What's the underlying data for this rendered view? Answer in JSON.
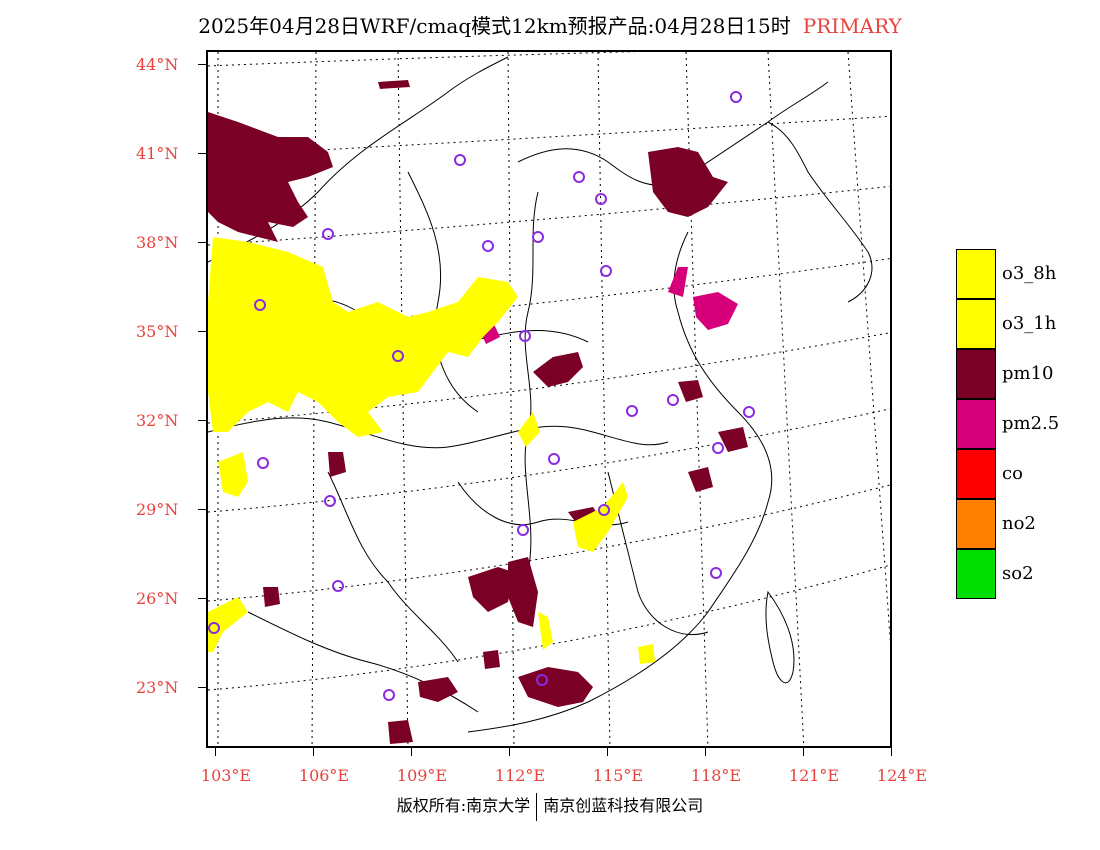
{
  "title": {
    "text": "2025年04月28日WRF/cmaq模式12km预报产品:04月28日15时",
    "tag": "PRIMARY"
  },
  "axes": {
    "lat_labels": [
      "44°N",
      "41°N",
      "38°N",
      "35°N",
      "32°N",
      "29°N",
      "26°N",
      "23°N"
    ],
    "lon_labels": [
      "103°E",
      "106°E",
      "109°E",
      "112°E",
      "115°E",
      "118°E",
      "121°E",
      "124°E"
    ]
  },
  "legend": {
    "items": [
      {
        "label": "o3_8h",
        "color": "#ffff00"
      },
      {
        "label": "o3_1h",
        "color": "#ffff00"
      },
      {
        "label": "pm10",
        "color": "#7a0026"
      },
      {
        "label": "pm2.5",
        "color": "#d6007a"
      },
      {
        "label": "co",
        "color": "#ff0000"
      },
      {
        "label": "no2",
        "color": "#ff8000"
      },
      {
        "label": "so2",
        "color": "#00dd00"
      }
    ]
  },
  "colors": {
    "label_red": "#e8423c",
    "station_marker": "#8a2be2"
  },
  "copyright": {
    "left": "版权所有:南京大学",
    "right": "南京创蓝科技有限公司"
  }
}
